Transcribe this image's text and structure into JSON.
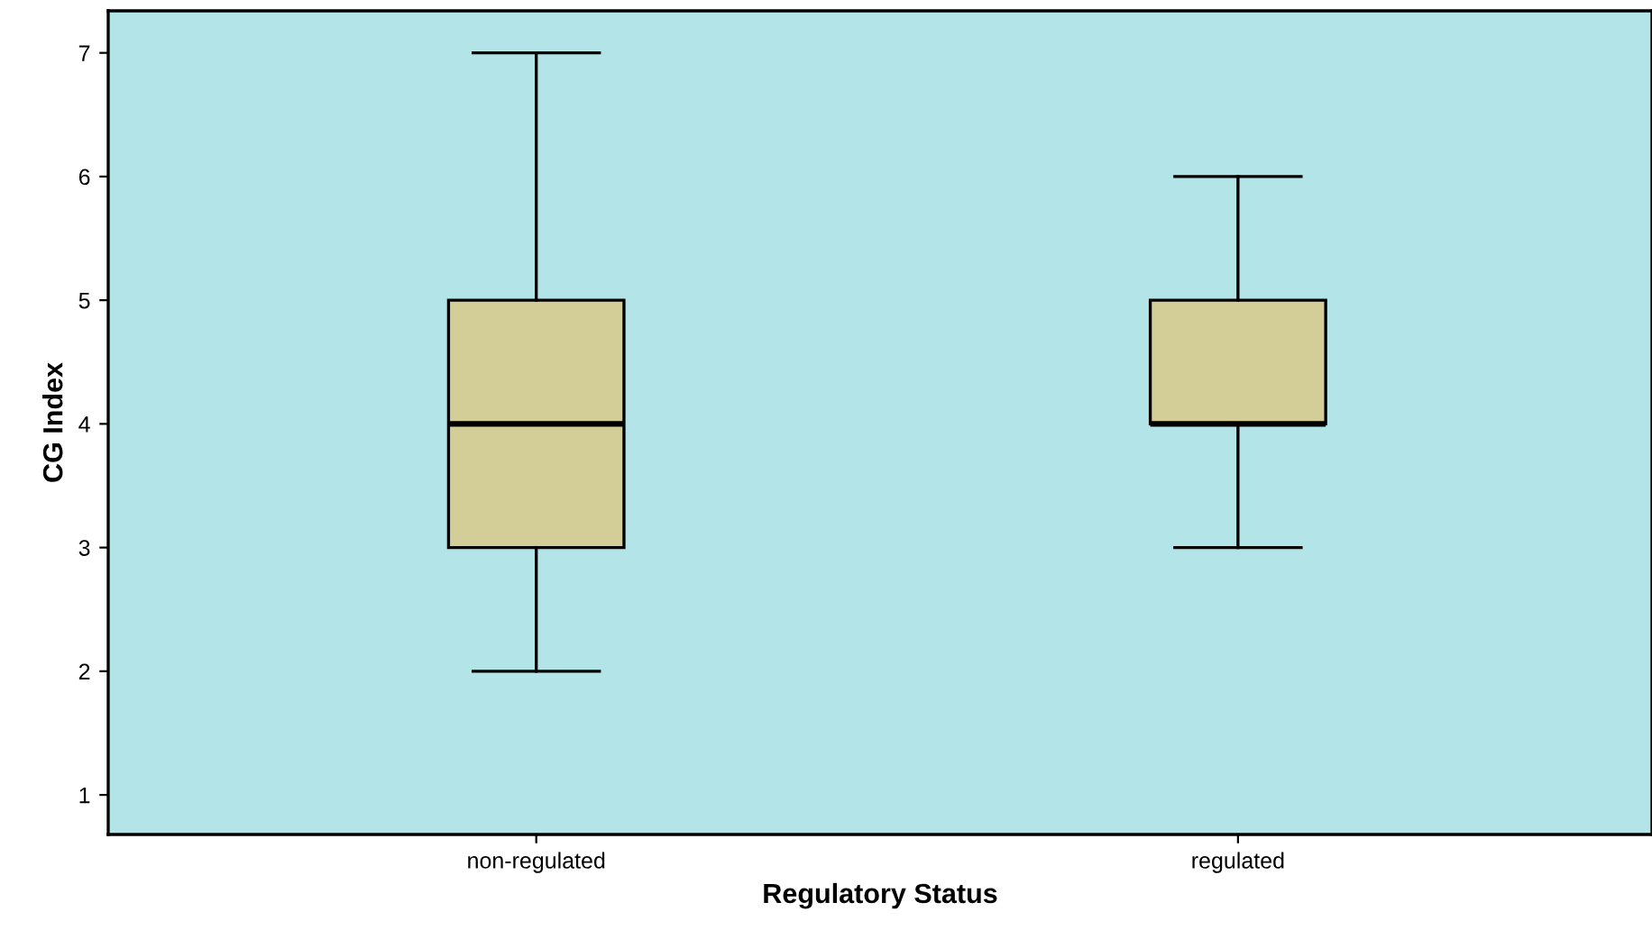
{
  "chart_data": {
    "type": "box",
    "xlabel": "Regulatory Status",
    "ylabel": "CG Index",
    "categories": [
      "non-regulated",
      "regulated"
    ],
    "series": [
      {
        "color": "#d3cd98",
        "boxes": [
          {
            "low": 2,
            "q1": 3,
            "median": 4,
            "q3": 5,
            "high": 7
          },
          {
            "low": 3,
            "q1": 4,
            "median": 4,
            "q3": 5,
            "high": 6
          }
        ]
      }
    ],
    "ylim": [
      0.68,
      7.34
    ],
    "yticks": [
      1,
      2,
      3,
      4,
      5,
      6,
      7
    ],
    "grid": false,
    "legend": false
  }
}
